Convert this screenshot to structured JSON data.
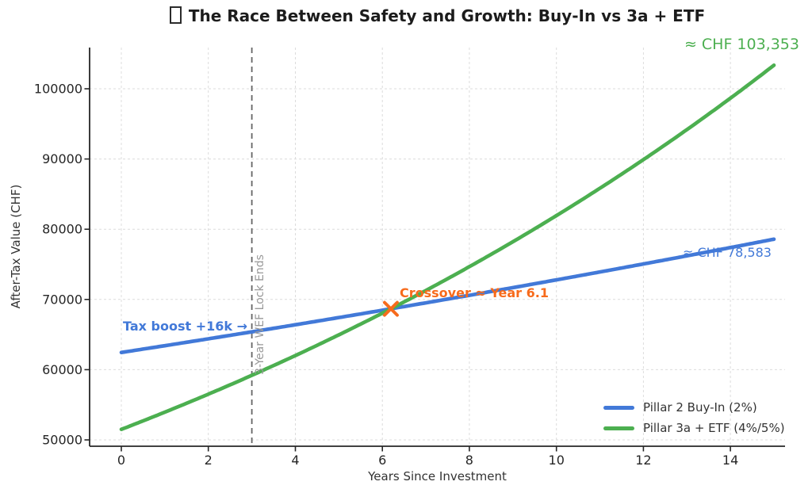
{
  "chart_data": {
    "type": "line",
    "title": "The Race Between Safety and Growth: Buy-In vs 3a + ETF",
    "xlabel": "Years Since Investment",
    "ylabel": "After-Tax Value (CHF)",
    "x": [
      0,
      1,
      2,
      3,
      4,
      5,
      6,
      7,
      8,
      9,
      10,
      11,
      12,
      13,
      14,
      15
    ],
    "x_ticks": [
      0,
      2,
      4,
      6,
      8,
      10,
      12,
      14
    ],
    "y_ticks": [
      50000,
      60000,
      70000,
      80000,
      90000,
      100000
    ],
    "xlim": [
      -0.73,
      15.26
    ],
    "ylim": [
      49100,
      105900
    ],
    "grid": true,
    "legend_position": "lower right",
    "series": [
      {
        "name": "Pillar 2 Buy-In (2%)",
        "color": "#4279d8",
        "values": [
          62450,
          63414,
          64393,
          65387,
          66396,
          67421,
          68462,
          69519,
          70592,
          71682,
          72788,
          73912,
          75053,
          76211,
          77388,
          78583
        ]
      },
      {
        "name": "Pillar 3a + ETF (4%/5%)",
        "color": "#4caf50",
        "values": [
          51500,
          53948,
          56512,
          59198,
          62012,
          64960,
          68047,
          71281,
          74669,
          78218,
          81936,
          85831,
          89910,
          94184,
          98660,
          103353
        ]
      }
    ],
    "vline": {
      "year": 3,
      "color": "#666666",
      "label": "3-Year WEF Lock Ends",
      "label_color": "#999999"
    },
    "annotations": {
      "tax_boost": {
        "text": "Tax boost +16k →",
        "color": "#4279d8"
      },
      "crossover": {
        "text": "Crossover ≈ Year 6.1",
        "color": "#f76b1c",
        "year": 6.1
      },
      "green_end": {
        "text": "≈ CHF 103,353",
        "color": "#4caf50",
        "value": 103353
      },
      "blue_end": {
        "text": "≈ CHF 78,583",
        "color": "#4279d8",
        "value": 78583
      }
    },
    "axis_color": "#262626",
    "grid_color": "#dcdcdc"
  }
}
